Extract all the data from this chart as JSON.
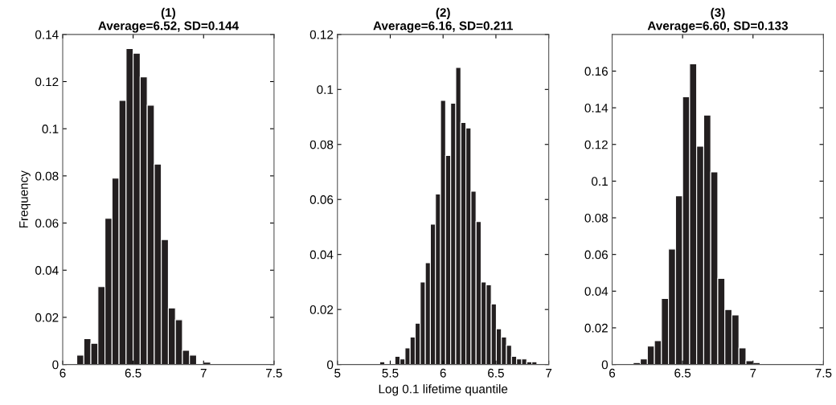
{
  "chart_data": [
    {
      "type": "histogram",
      "title": "(1)\nAverage=6.52, SD=0.144",
      "ylabel": "Frequency",
      "color": "#231f20",
      "bins": [
        6.1,
        6.15,
        6.2,
        6.25,
        6.3,
        6.35,
        6.4,
        6.45,
        6.5,
        6.55,
        6.6,
        6.65,
        6.7,
        6.75,
        6.8,
        6.85,
        6.9,
        6.95,
        7.0,
        7.05
      ],
      "values": [
        0.004,
        0.011,
        0.009,
        0.033,
        0.062,
        0.079,
        0.112,
        0.134,
        0.132,
        0.122,
        0.11,
        0.085,
        0.053,
        0.024,
        0.019,
        0.006,
        0.004,
        0,
        0.001
      ],
      "xlim": [
        6,
        7.5
      ],
      "xticks": [
        6,
        6.5,
        7,
        7.5
      ],
      "ylim": [
        0,
        0.14
      ],
      "yticks": [
        0,
        0.02,
        0.04,
        0.06,
        0.08,
        0.1,
        0.12,
        0.14
      ],
      "grid": false
    },
    {
      "type": "histogram",
      "title": "(2)\nAverage=6.16, SD=0.211",
      "xlabel": "Log 0.1 lifetime quantile",
      "color": "#231f20",
      "bins": [
        5.4,
        5.448,
        5.496,
        5.544,
        5.592,
        5.64,
        5.688,
        5.736,
        5.784,
        5.832,
        5.88,
        5.928,
        5.976,
        6.024,
        6.072,
        6.12,
        6.168,
        6.216,
        6.264,
        6.312,
        6.36,
        6.408,
        6.456,
        6.504,
        6.552,
        6.6,
        6.648,
        6.696,
        6.744,
        6.792,
        6.84,
        6.888
      ],
      "values": [
        0.001,
        0,
        0,
        0.003,
        0.002,
        0.006,
        0.01,
        0.015,
        0.03,
        0.037,
        0.051,
        0.062,
        0.096,
        0.076,
        0.095,
        0.108,
        0.088,
        0.086,
        0.063,
        0.052,
        0.03,
        0.029,
        0.022,
        0.013,
        0.01,
        0.007,
        0.003,
        0.002,
        0.002,
        0.001,
        0.001
      ],
      "xlim": [
        5,
        7
      ],
      "xticks": [
        5,
        5.5,
        6,
        6.5,
        7
      ],
      "ylim": [
        0,
        0.12
      ],
      "yticks": [
        0,
        0.02,
        0.04,
        0.06,
        0.08,
        0.1,
        0.12
      ],
      "grid": false
    },
    {
      "type": "histogram",
      "title": "(3)\nAverage=6.60, SD=0.133",
      "color": "#231f20",
      "bins": [
        6.15,
        6.2,
        6.25,
        6.3,
        6.35,
        6.4,
        6.45,
        6.5,
        6.55,
        6.6,
        6.65,
        6.7,
        6.75,
        6.8,
        6.85,
        6.9,
        6.95,
        7.0,
        7.05
      ],
      "values": [
        0.001,
        0.003,
        0.01,
        0.013,
        0.036,
        0.063,
        0.092,
        0.146,
        0.164,
        0.119,
        0.136,
        0.105,
        0.047,
        0.03,
        0.027,
        0.009,
        0.002,
        0.001
      ],
      "xlim": [
        6,
        7.5
      ],
      "xticks": [
        6,
        6.5,
        7,
        7.5
      ],
      "ylim": [
        0,
        0.18
      ],
      "yticks": [
        0,
        0.02,
        0.04,
        0.06,
        0.08,
        0.1,
        0.12,
        0.14,
        0.16
      ],
      "grid": false
    }
  ]
}
